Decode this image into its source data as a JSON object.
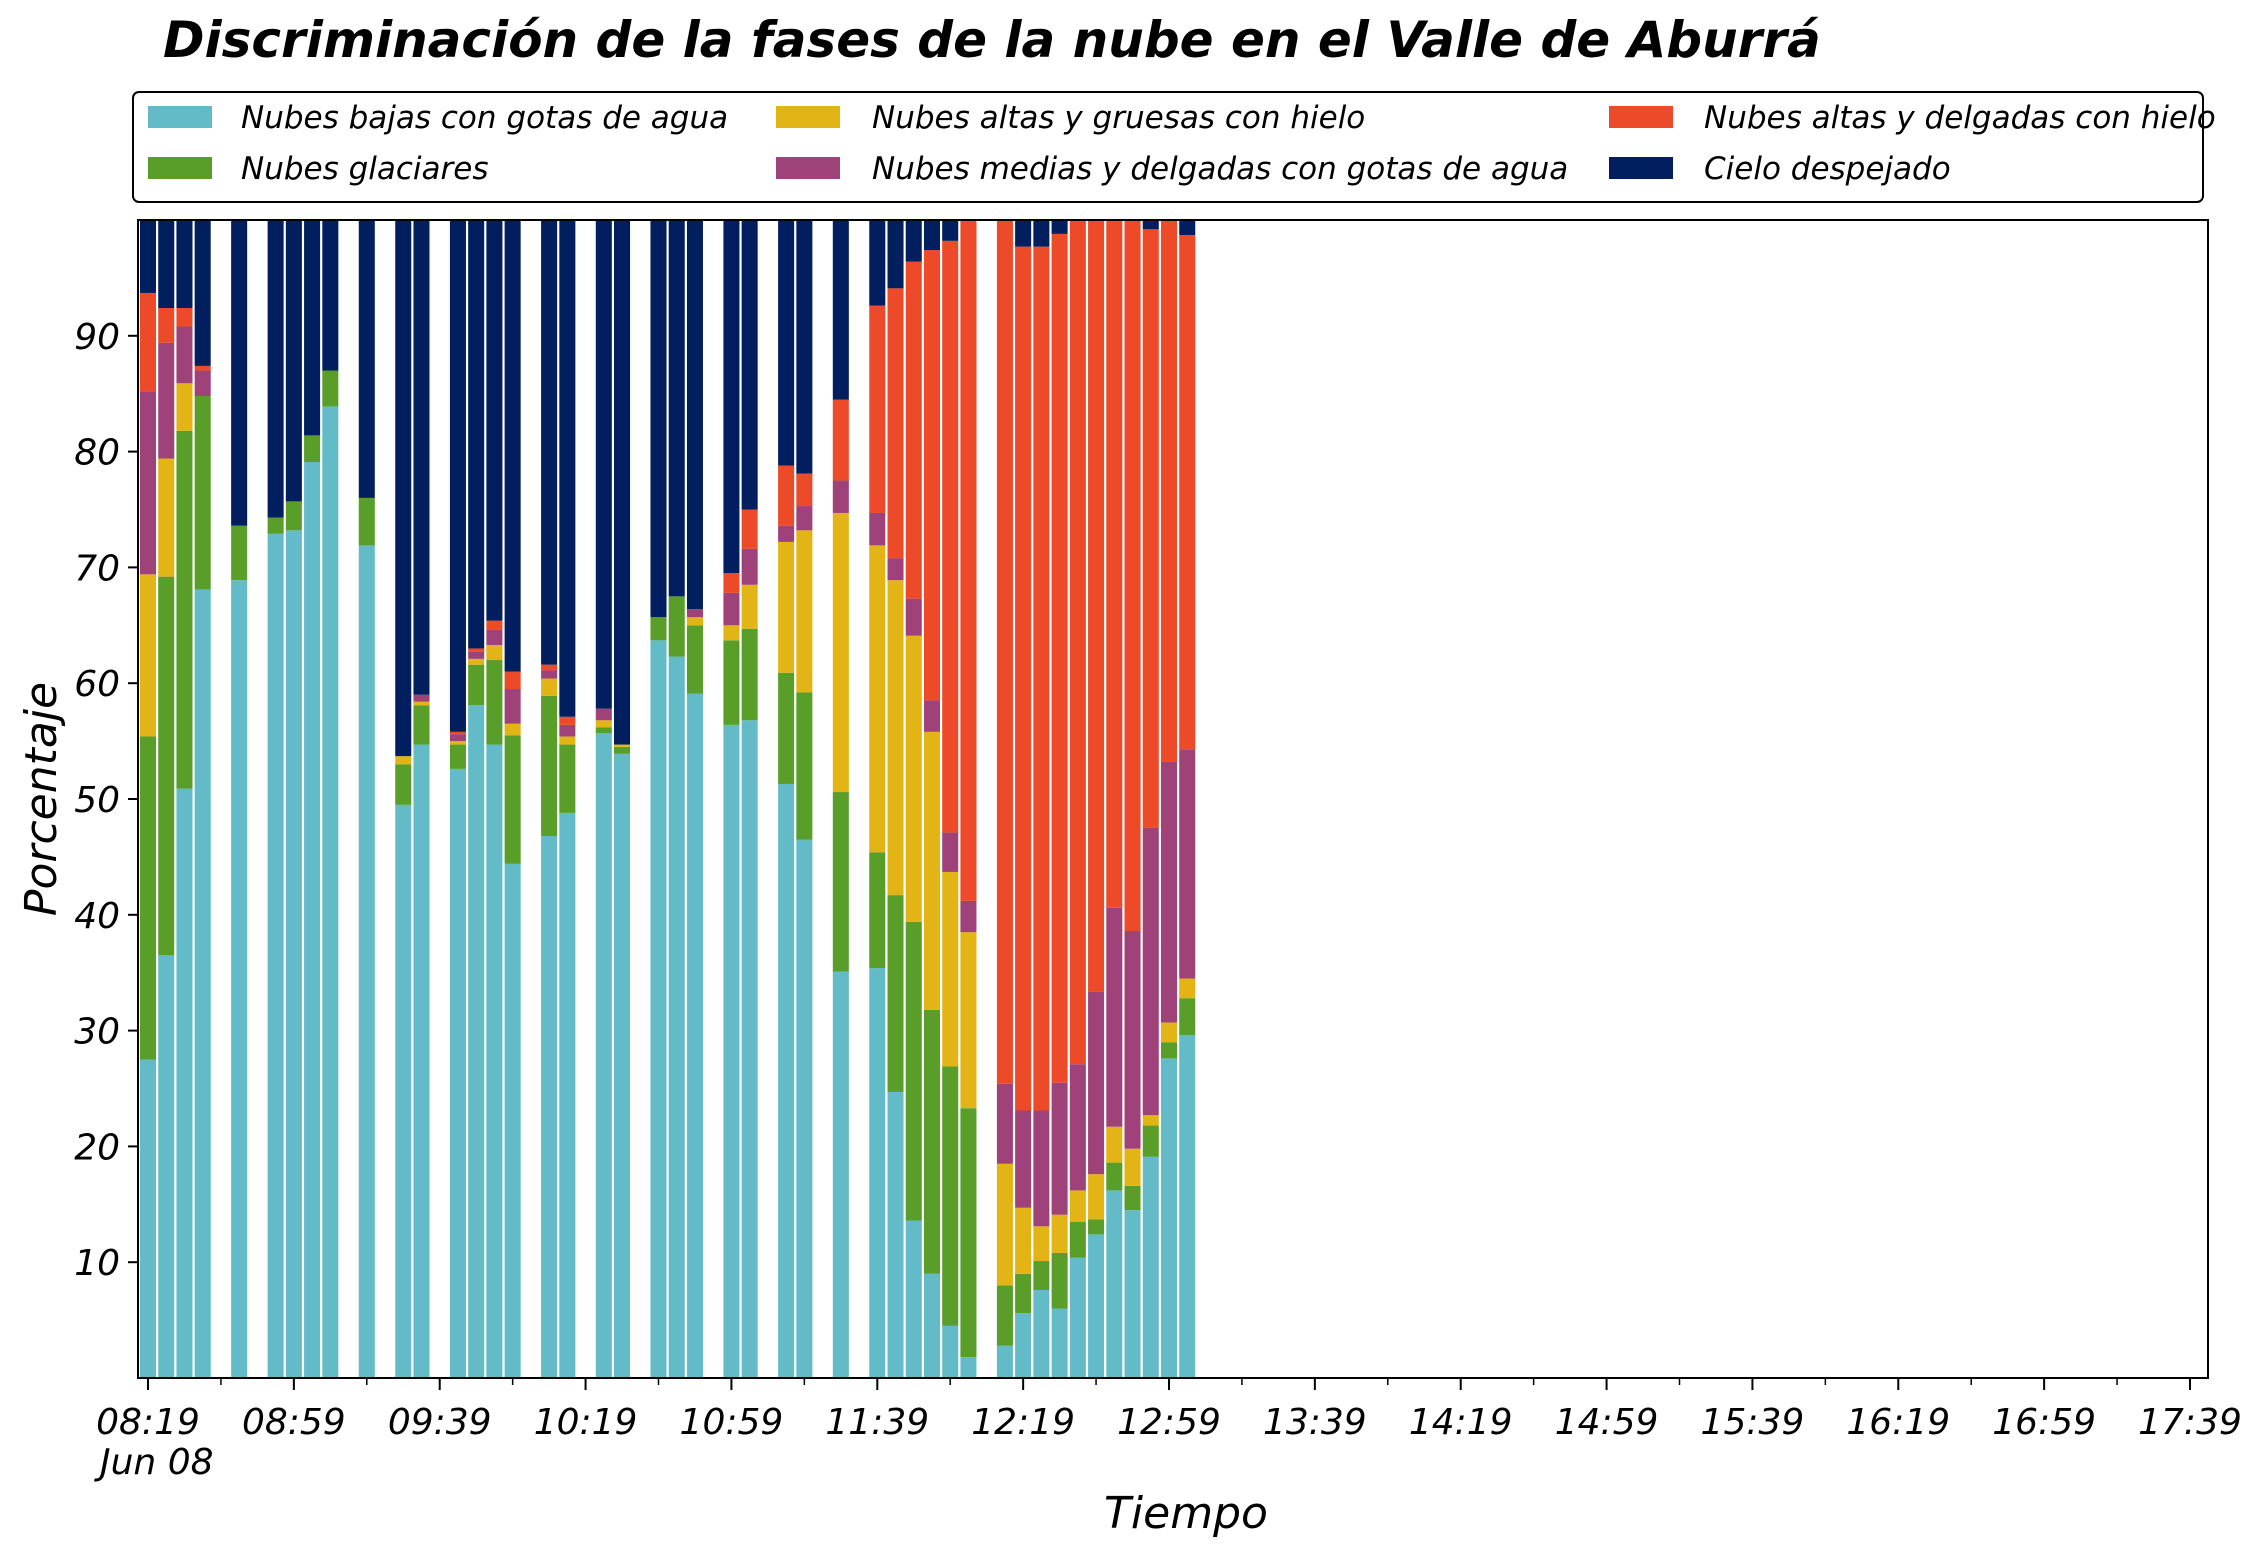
{
  "chart_data": {
    "type": "bar",
    "stacked": true,
    "title": "Discriminación de la fases de la nube en el Valle de Aburrá",
    "xlabel": "Tiempo",
    "ylabel": "Porcentaje",
    "ylim": [
      0,
      100
    ],
    "yticks": [
      10,
      20,
      30,
      40,
      50,
      60,
      70,
      80,
      90
    ],
    "xtick_labels": [
      "08:19",
      "08:59",
      "09:39",
      "10:19",
      "10:59",
      "11:39",
      "12:19",
      "12:59",
      "13:39",
      "14:19",
      "14:59",
      "15:39",
      "16:19",
      "16:59",
      "17:39"
    ],
    "date_label": "Jun 08",
    "legend_position": "top",
    "series": [
      {
        "name": "Nubes bajas con gotas de agua",
        "color": "#63BBC7"
      },
      {
        "name": "Nubes glaciares",
        "color": "#589E28"
      },
      {
        "name": "Nubes altas y gruesas con hielo",
        "color": "#E3B416"
      },
      {
        "name": "Nubes medias y delgadas con gotas de agua",
        "color": "#A0427A"
      },
      {
        "name": "Nubes altas y delgadas con hielo",
        "color": "#EC4A29"
      },
      {
        "name": "Cielo despejado",
        "color": "#011F5E"
      }
    ],
    "bars": [
      {
        "time": "08:19",
        "values": [
          27.5,
          27.9,
          14.0,
          15.8,
          8.5,
          6.3
        ]
      },
      {
        "time": "08:24",
        "values": [
          36.5,
          32.7,
          10.2,
          10.0,
          3.0,
          7.6
        ]
      },
      {
        "time": "08:29",
        "values": [
          50.9,
          30.9,
          4.1,
          4.9,
          1.6,
          7.6
        ]
      },
      {
        "time": "08:34",
        "values": [
          68.1,
          16.7,
          0.0,
          2.2,
          0.4,
          12.6
        ]
      },
      {
        "time": "08:44",
        "values": [
          68.9,
          4.7,
          0.0,
          0.0,
          0.0,
          26.4
        ]
      },
      {
        "time": "08:54",
        "values": [
          72.9,
          1.4,
          0.0,
          0.0,
          0.0,
          25.7
        ]
      },
      {
        "time": "08:59",
        "values": [
          73.2,
          2.5,
          0.0,
          0.0,
          0.0,
          24.3
        ]
      },
      {
        "time": "09:04",
        "values": [
          79.1,
          2.3,
          0.0,
          0.0,
          0.0,
          18.6
        ]
      },
      {
        "time": "09:09",
        "values": [
          83.9,
          3.1,
          0.0,
          0.0,
          0.0,
          13.0
        ]
      },
      {
        "time": "09:19",
        "values": [
          71.9,
          4.1,
          0.0,
          0.0,
          0.0,
          24.0
        ]
      },
      {
        "time": "09:29",
        "values": [
          49.5,
          3.5,
          0.7,
          0.0,
          0.0,
          46.3
        ]
      },
      {
        "time": "09:34",
        "values": [
          54.7,
          3.4,
          0.3,
          0.6,
          0.0,
          41.0
        ]
      },
      {
        "time": "09:44",
        "values": [
          52.6,
          2.1,
          0.3,
          0.6,
          0.2,
          44.2
        ]
      },
      {
        "time": "09:49",
        "values": [
          58.1,
          3.5,
          0.5,
          0.6,
          0.3,
          37.0
        ]
      },
      {
        "time": "09:54",
        "values": [
          54.7,
          7.3,
          1.3,
          1.3,
          0.8,
          34.6
        ]
      },
      {
        "time": "09:59",
        "values": [
          44.4,
          11.1,
          1.0,
          3.0,
          1.5,
          39.0
        ]
      },
      {
        "time": "10:09",
        "values": [
          46.8,
          12.1,
          1.5,
          0.7,
          0.5,
          38.4
        ]
      },
      {
        "time": "10:14",
        "values": [
          48.8,
          5.9,
          0.7,
          1.0,
          0.7,
          42.9
        ]
      },
      {
        "time": "10:24",
        "values": [
          55.7,
          0.5,
          0.6,
          1.0,
          0.0,
          42.2
        ]
      },
      {
        "time": "10:29",
        "values": [
          53.9,
          0.6,
          0.2,
          0.0,
          0.0,
          45.3
        ]
      },
      {
        "time": "10:39",
        "values": [
          63.7,
          2.0,
          0.0,
          0.0,
          0.0,
          34.3
        ]
      },
      {
        "time": "10:44",
        "values": [
          62.3,
          5.2,
          0.0,
          0.0,
          0.0,
          32.5
        ]
      },
      {
        "time": "10:49",
        "values": [
          59.1,
          5.9,
          0.7,
          0.7,
          0.0,
          33.6
        ]
      },
      {
        "time": "10:59",
        "values": [
          56.4,
          7.3,
          1.3,
          2.8,
          1.7,
          30.5
        ]
      },
      {
        "time": "11:04",
        "values": [
          56.8,
          7.9,
          3.8,
          3.1,
          3.4,
          25.0
        ]
      },
      {
        "time": "11:14",
        "values": [
          51.3,
          9.6,
          11.3,
          1.4,
          5.2,
          21.2
        ]
      },
      {
        "time": "11:19",
        "values": [
          46.5,
          12.7,
          14.0,
          2.1,
          2.8,
          21.9
        ]
      },
      {
        "time": "11:29",
        "values": [
          35.1,
          15.5,
          24.1,
          2.8,
          7.0,
          15.5
        ]
      },
      {
        "time": "11:39",
        "values": [
          35.4,
          10.0,
          26.5,
          2.8,
          17.9,
          7.4
        ]
      },
      {
        "time": "11:44",
        "values": [
          24.7,
          17.0,
          27.2,
          1.9,
          23.3,
          5.9
        ]
      },
      {
        "time": "11:49",
        "values": [
          13.6,
          25.8,
          24.7,
          3.2,
          29.1,
          3.6
        ]
      },
      {
        "time": "11:54",
        "values": [
          9.0,
          22.8,
          24.0,
          2.7,
          38.9,
          2.6
        ]
      },
      {
        "time": "11:59",
        "values": [
          4.5,
          22.4,
          16.8,
          3.4,
          51.1,
          1.8
        ]
      },
      {
        "time": "12:04",
        "values": [
          1.8,
          21.5,
          15.2,
          2.7,
          59.2,
          0.6
        ]
      },
      {
        "time": "12:14",
        "values": [
          2.8,
          5.2,
          10.5,
          6.9,
          74.6,
          0.0
        ]
      },
      {
        "time": "12:19",
        "values": [
          5.6,
          3.4,
          5.7,
          8.4,
          74.6,
          2.3
        ]
      },
      {
        "time": "12:24",
        "values": [
          7.6,
          2.5,
          3.0,
          10.0,
          74.6,
          2.3
        ]
      },
      {
        "time": "12:29",
        "values": [
          6.0,
          4.8,
          3.3,
          11.4,
          73.3,
          1.2
        ]
      },
      {
        "time": "12:34",
        "values": [
          10.4,
          3.1,
          2.7,
          10.9,
          72.9,
          0.0
        ]
      },
      {
        "time": "12:39",
        "values": [
          12.4,
          1.3,
          3.9,
          15.8,
          66.6,
          0.0
        ]
      },
      {
        "time": "12:44",
        "values": [
          16.2,
          2.4,
          3.1,
          18.9,
          59.4,
          0.0
        ]
      },
      {
        "time": "12:49",
        "values": [
          14.5,
          2.1,
          3.2,
          18.8,
          61.4,
          0.0
        ]
      },
      {
        "time": "12:54",
        "values": [
          19.1,
          2.7,
          0.9,
          24.8,
          51.7,
          0.8
        ]
      },
      {
        "time": "12:59",
        "values": [
          27.6,
          1.4,
          1.7,
          22.5,
          46.8,
          0.0
        ]
      },
      {
        "time": "13:04",
        "values": [
          29.6,
          3.2,
          1.7,
          19.8,
          44.4,
          1.3
        ]
      }
    ]
  }
}
